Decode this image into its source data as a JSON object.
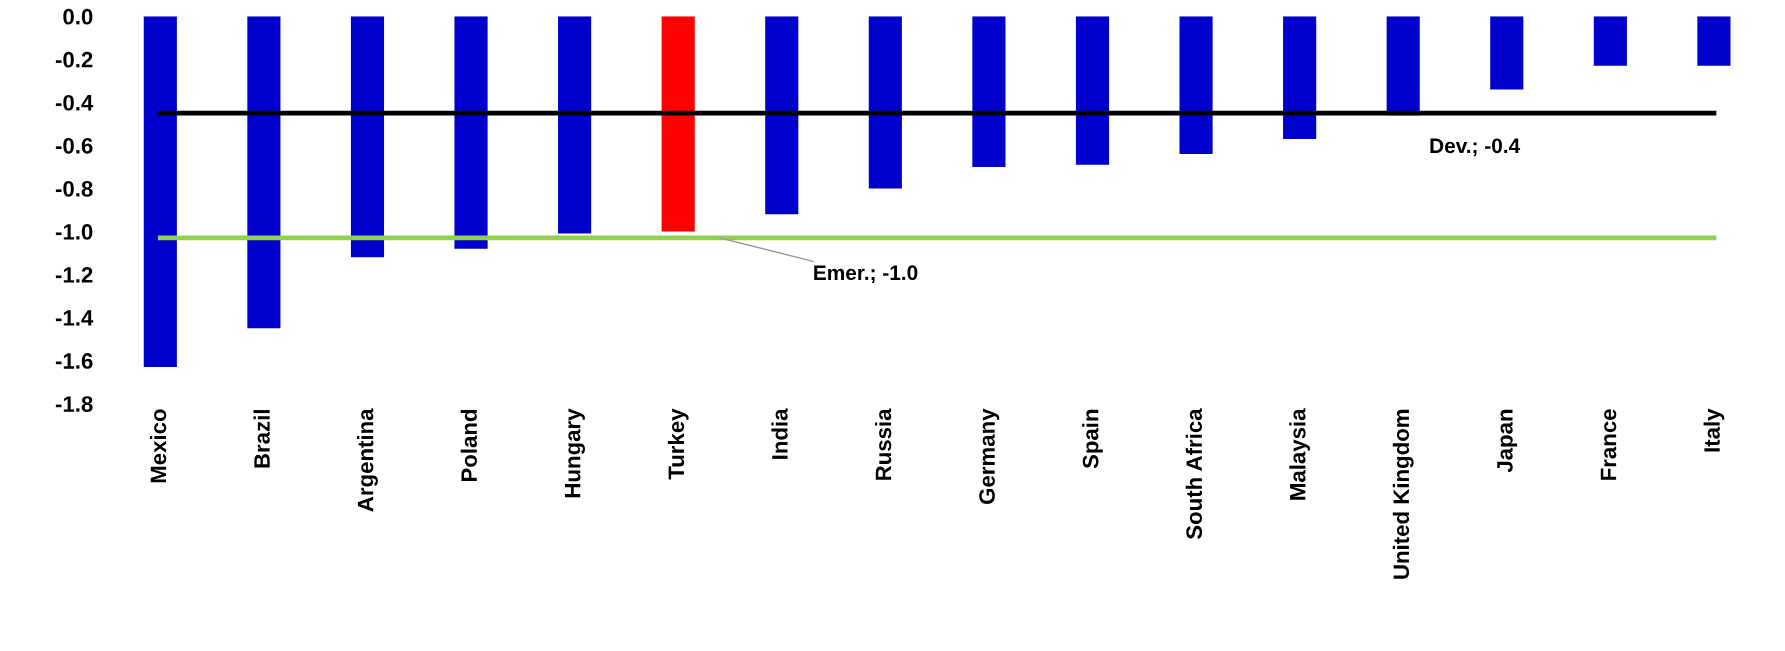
{
  "chart_data": {
    "type": "bar",
    "categories": [
      "Mexico",
      "Brazil",
      "Argentina",
      "Poland",
      "Hungary",
      "Turkey",
      "India",
      "Russia",
      "Germany",
      "Spain",
      "South Africa",
      "Malaysia",
      "United Kingdom",
      "Japan",
      "France",
      "Italy"
    ],
    "values": [
      -1.63,
      -1.45,
      -1.12,
      -1.08,
      -1.01,
      -1.0,
      -0.92,
      -0.8,
      -0.7,
      -0.69,
      -0.64,
      -0.57,
      -0.46,
      -0.34,
      -0.23,
      -0.23
    ],
    "colors": [
      "#0000cc",
      "#0000cc",
      "#0000cc",
      "#0000cc",
      "#0000cc",
      "#ff0000",
      "#0000cc",
      "#0000cc",
      "#0000cc",
      "#0000cc",
      "#0000cc",
      "#0000cc",
      "#0000cc",
      "#0000cc",
      "#0000cc",
      "#0000cc"
    ],
    "ylim": [
      -1.8,
      0
    ],
    "yticks": [
      {
        "value": 0,
        "label": "0.0"
      },
      {
        "value": -0.2,
        "label": "-0.2"
      },
      {
        "value": -0.4,
        "label": "-0.4"
      },
      {
        "value": -0.6,
        "label": "-0.6"
      },
      {
        "value": -0.8,
        "label": "-0.8"
      },
      {
        "value": -1.0,
        "label": "-1.0"
      },
      {
        "value": -1.2,
        "label": "-1.2"
      },
      {
        "value": -1.4,
        "label": "-1.4"
      },
      {
        "value": -1.6,
        "label": "-1.6"
      },
      {
        "value": -1.8,
        "label": "-1.8"
      }
    ],
    "ref_lines": [
      {
        "axis": "y",
        "value": -0.45,
        "label": "Dev.; -0.4",
        "color": "#000000"
      },
      {
        "axis": "y",
        "value": -1.03,
        "label": "Emer.; -1.0",
        "color": "#92d050"
      }
    ],
    "grid": false,
    "legend": false
  }
}
